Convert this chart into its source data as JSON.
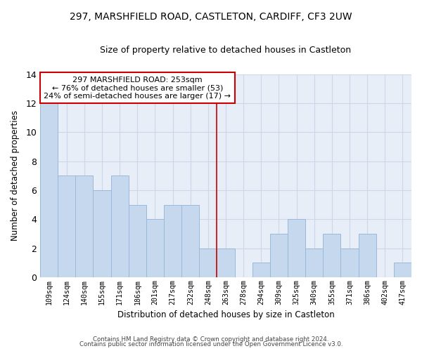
{
  "title_line1": "297, MARSHFIELD ROAD, CASTLETON, CARDIFF, CF3 2UW",
  "title_line2": "Size of property relative to detached houses in Castleton",
  "xlabel": "Distribution of detached houses by size in Castleton",
  "ylabel": "Number of detached properties",
  "footnote_line1": "Contains HM Land Registry data © Crown copyright and database right 2024.",
  "footnote_line2": "Contains public sector information licensed under the Open Government Licence v3.0.",
  "bar_labels": [
    "109sqm",
    "124sqm",
    "140sqm",
    "155sqm",
    "171sqm",
    "186sqm",
    "201sqm",
    "217sqm",
    "232sqm",
    "248sqm",
    "263sqm",
    "278sqm",
    "294sqm",
    "309sqm",
    "325sqm",
    "340sqm",
    "355sqm",
    "371sqm",
    "386sqm",
    "402sqm",
    "417sqm"
  ],
  "bar_values": [
    12,
    7,
    7,
    6,
    7,
    5,
    4,
    5,
    5,
    2,
    2,
    0,
    1,
    3,
    4,
    2,
    3,
    2,
    3,
    0,
    1
  ],
  "bar_color": "#c5d8ee",
  "bar_edge_color": "#9ab8d8",
  "reference_line_x": 9.5,
  "reference_line_label": "297 MARSHFIELD ROAD: 253sqm",
  "annotation_line1": "← 76% of detached houses are smaller (53)",
  "annotation_line2": "24% of semi-detached houses are larger (17) →",
  "annotation_box_color": "#ffffff",
  "annotation_box_edge_color": "#cc0000",
  "ylim": [
    0,
    14
  ],
  "yticks": [
    0,
    2,
    4,
    6,
    8,
    10,
    12,
    14
  ],
  "background_color": "#ffffff",
  "grid_color": "#ccd8e8",
  "plot_bg_color": "#e8eef8"
}
